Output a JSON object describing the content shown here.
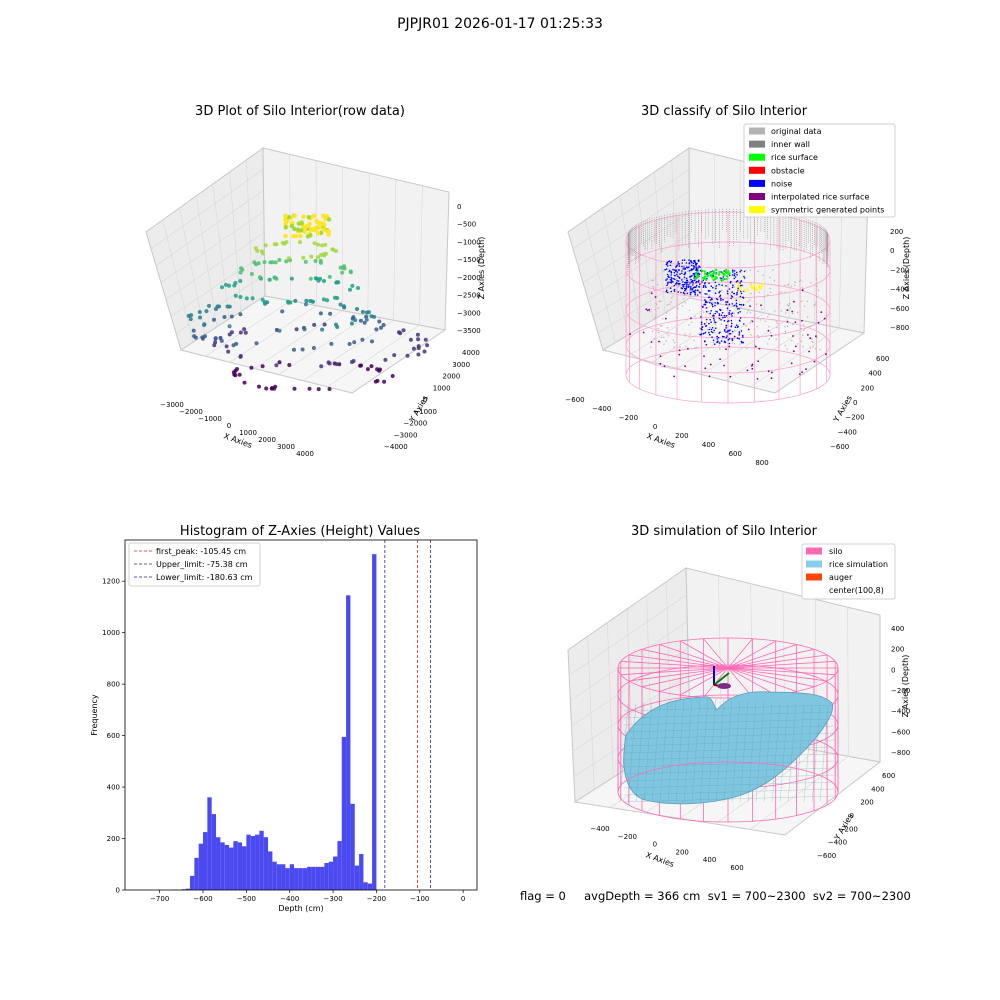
{
  "figure_title": "PJPJR01 2026-01-17 01:25:33",
  "status_line": "flag = 0     avgDepth = 366 cm  sv1 = 700~2300  sv2 = 700~2300",
  "colors": {
    "histogram": "#4a4af0",
    "first_peak": "#e02020",
    "limits": "#2020d0",
    "original_data": "#b3b3b3",
    "inner_wall": "#808080",
    "rice_surface": "#00ff00",
    "obstacle": "#ff0000",
    "noise": "#0000ff",
    "interpolated": "#800080",
    "symmetric": "#ffff00",
    "silo": "#ff69b4",
    "rice_simulation": "#87ceeb",
    "auger": "#ff4500"
  },
  "chart_data": [
    {
      "type": "scatter",
      "title": "3D Plot of Silo Interior(row data)",
      "xlabel": "X Axies",
      "ylabel": "Y Axies",
      "zlabel": "Z Axies (Depth)",
      "x_ticks": [
        "−3000",
        "−2000",
        "−1000",
        "0",
        "1000",
        "2000",
        "3000",
        "4000"
      ],
      "y_ticks": [
        "−4000",
        "−3000",
        "−2000",
        "−1000",
        "0",
        "1000",
        "2000",
        "3000",
        "4000"
      ],
      "z_ticks": [
        "0",
        "−500",
        "−1000",
        "−1500",
        "−2000",
        "−2500",
        "−3000",
        "−3500"
      ],
      "colormap": "viridis by depth"
    },
    {
      "type": "scatter",
      "title": "3D classify of Silo Interior",
      "xlabel": "X Axies",
      "ylabel": "Y Axies",
      "zlabel": "Z Axies (Depth)",
      "x_ticks": [
        "−600",
        "−400",
        "−200",
        "0",
        "200",
        "400",
        "600",
        "800"
      ],
      "y_ticks": [
        "−600",
        "−400",
        "−200",
        "0",
        "200",
        "400",
        "600"
      ],
      "z_ticks": [
        "200",
        "0",
        "−200",
        "−400",
        "−600",
        "−800"
      ],
      "legend": [
        "original data",
        "inner wall",
        "rice surface",
        "obstacle",
        "noise",
        "interpolated rice surface",
        "symmetric generated points"
      ],
      "legend_position": "top-right"
    },
    {
      "type": "bar",
      "title": "Histogram of Z-Axies (Height) Values",
      "xlabel": "Depth (cm)",
      "ylabel": "Frequency",
      "xlim": [
        -780,
        32
      ],
      "ylim": [
        0,
        1360
      ],
      "x_ticks": [
        -700,
        -600,
        -500,
        -400,
        -300,
        -200,
        -100,
        0
      ],
      "x_tick_labels": [
        "−700",
        "−600",
        "−500",
        "−400",
        "−300",
        "−200",
        "−100",
        "0"
      ],
      "y_ticks": [
        0,
        200,
        400,
        600,
        800,
        1000,
        1200
      ],
      "bin_width": 10,
      "bins": [
        {
          "x": -665,
          "y": 2
        },
        {
          "x": -645,
          "y": 3
        },
        {
          "x": -635,
          "y": 5
        },
        {
          "x": -625,
          "y": 55
        },
        {
          "x": -615,
          "y": 125
        },
        {
          "x": -605,
          "y": 180
        },
        {
          "x": -595,
          "y": 225
        },
        {
          "x": -585,
          "y": 360
        },
        {
          "x": -575,
          "y": 295
        },
        {
          "x": -565,
          "y": 205
        },
        {
          "x": -555,
          "y": 185
        },
        {
          "x": -545,
          "y": 175
        },
        {
          "x": -535,
          "y": 165
        },
        {
          "x": -525,
          "y": 190
        },
        {
          "x": -515,
          "y": 185
        },
        {
          "x": -505,
          "y": 170
        },
        {
          "x": -495,
          "y": 215
        },
        {
          "x": -485,
          "y": 210
        },
        {
          "x": -475,
          "y": 215
        },
        {
          "x": -465,
          "y": 230
        },
        {
          "x": -455,
          "y": 205
        },
        {
          "x": -445,
          "y": 150
        },
        {
          "x": -435,
          "y": 110
        },
        {
          "x": -425,
          "y": 100
        },
        {
          "x": -415,
          "y": 100
        },
        {
          "x": -405,
          "y": 85
        },
        {
          "x": -395,
          "y": 100
        },
        {
          "x": -385,
          "y": 85
        },
        {
          "x": -375,
          "y": 85
        },
        {
          "x": -365,
          "y": 85
        },
        {
          "x": -355,
          "y": 90
        },
        {
          "x": -345,
          "y": 90
        },
        {
          "x": -335,
          "y": 90
        },
        {
          "x": -325,
          "y": 90
        },
        {
          "x": -315,
          "y": 105
        },
        {
          "x": -305,
          "y": 110
        },
        {
          "x": -295,
          "y": 130
        },
        {
          "x": -285,
          "y": 190
        },
        {
          "x": -275,
          "y": 595
        },
        {
          "x": -265,
          "y": 1145
        },
        {
          "x": -255,
          "y": 335
        },
        {
          "x": -245,
          "y": 95
        },
        {
          "x": -235,
          "y": 140
        },
        {
          "x": -225,
          "y": 30
        },
        {
          "x": -215,
          "y": 25
        },
        {
          "x": -205,
          "y": 1305
        }
      ],
      "lines": [
        {
          "label": "first_peak: -105.45 cm",
          "x": -105.45,
          "color": "#e02020"
        },
        {
          "label": "Upper_limit: -75.38 cm",
          "x": -75.38,
          "color": "#2020d0"
        },
        {
          "label": "Lower_limit: -180.63 cm",
          "x": -180.63,
          "color": "#2020d0"
        }
      ],
      "legend_position": "top-left"
    },
    {
      "type": "surface",
      "title": "3D simulation of Silo Interior",
      "xlabel": "X Axies",
      "ylabel": "Y Axies",
      "zlabel": "Z Axies (Depth)",
      "x_ticks": [
        "−400",
        "−200",
        "0",
        "200",
        "400",
        "600"
      ],
      "y_ticks": [
        "−600",
        "−400",
        "−200",
        "0",
        "200",
        "400",
        "600"
      ],
      "z_ticks": [
        "400",
        "200",
        "0",
        "−200",
        "−400",
        "−600",
        "−800"
      ],
      "legend": [
        "silo",
        "rice simulation",
        "auger",
        "center(100,8)"
      ],
      "legend_position": "top-right"
    }
  ]
}
